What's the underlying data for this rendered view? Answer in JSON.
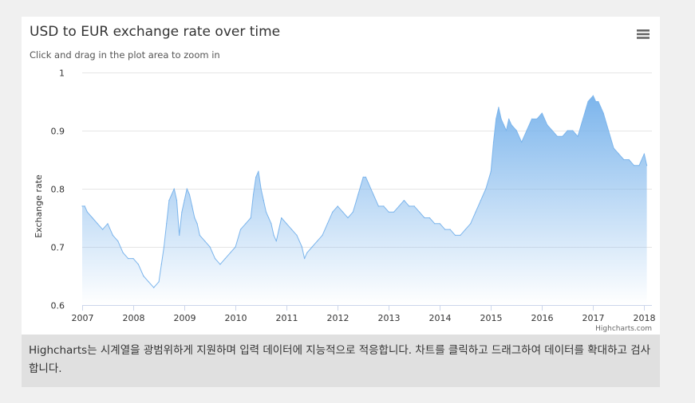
{
  "chart_data": {
    "type": "area",
    "title": "USD to EUR exchange rate over time",
    "subtitle": "Click and drag in the plot area to zoom in",
    "xlabel": "",
    "ylabel": "Exchange rate",
    "xlim": [
      2007.0,
      2018.15
    ],
    "ylim": [
      0.6,
      1.0
    ],
    "x_ticks": [
      "2007",
      "2008",
      "2009",
      "2010",
      "2011",
      "2012",
      "2013",
      "2014",
      "2015",
      "2016",
      "2017",
      "2018"
    ],
    "y_ticks": [
      "0.6",
      "0.7",
      "0.8",
      "0.9",
      "1"
    ],
    "grid": true,
    "legend": "none",
    "credits": "Highcharts.com",
    "series": [
      {
        "color": "#7cb5ec",
        "x": [
          2007.0,
          2007.05,
          2007.1,
          2007.2,
          2007.3,
          2007.4,
          2007.5,
          2007.6,
          2007.7,
          2007.8,
          2007.9,
          2008.0,
          2008.1,
          2008.2,
          2008.3,
          2008.4,
          2008.5,
          2008.55,
          2008.6,
          2008.65,
          2008.7,
          2008.75,
          2008.8,
          2008.85,
          2008.9,
          2008.95,
          2009.0,
          2009.05,
          2009.1,
          2009.15,
          2009.2,
          2009.25,
          2009.3,
          2009.4,
          2009.5,
          2009.6,
          2009.7,
          2009.8,
          2009.9,
          2010.0,
          2010.1,
          2010.2,
          2010.3,
          2010.35,
          2010.4,
          2010.45,
          2010.5,
          2010.55,
          2010.6,
          2010.65,
          2010.7,
          2010.75,
          2010.8,
          2010.85,
          2010.9,
          2011.0,
          2011.1,
          2011.2,
          2011.3,
          2011.35,
          2011.4,
          2011.5,
          2011.6,
          2011.7,
          2011.8,
          2011.9,
          2012.0,
          2012.1,
          2012.2,
          2012.3,
          2012.4,
          2012.5,
          2012.55,
          2012.6,
          2012.7,
          2012.8,
          2012.9,
          2013.0,
          2013.1,
          2013.2,
          2013.3,
          2013.4,
          2013.5,
          2013.6,
          2013.7,
          2013.8,
          2013.9,
          2014.0,
          2014.1,
          2014.2,
          2014.3,
          2014.4,
          2014.5,
          2014.6,
          2014.7,
          2014.8,
          2014.9,
          2015.0,
          2015.05,
          2015.1,
          2015.15,
          2015.2,
          2015.25,
          2015.3,
          2015.35,
          2015.4,
          2015.5,
          2015.6,
          2015.7,
          2015.8,
          2015.9,
          2016.0,
          2016.1,
          2016.2,
          2016.3,
          2016.4,
          2016.5,
          2016.6,
          2016.7,
          2016.8,
          2016.9,
          2017.0,
          2017.05,
          2017.1,
          2017.15,
          2017.2,
          2017.3,
          2017.4,
          2017.5,
          2017.6,
          2017.7,
          2017.8,
          2017.9,
          2018.0,
          2018.05
        ],
        "values": [
          0.77,
          0.77,
          0.76,
          0.75,
          0.74,
          0.73,
          0.74,
          0.72,
          0.71,
          0.69,
          0.68,
          0.68,
          0.67,
          0.65,
          0.64,
          0.63,
          0.64,
          0.67,
          0.7,
          0.74,
          0.78,
          0.79,
          0.8,
          0.78,
          0.72,
          0.76,
          0.78,
          0.8,
          0.79,
          0.77,
          0.75,
          0.74,
          0.72,
          0.71,
          0.7,
          0.68,
          0.67,
          0.68,
          0.69,
          0.7,
          0.73,
          0.74,
          0.75,
          0.79,
          0.82,
          0.83,
          0.8,
          0.78,
          0.76,
          0.75,
          0.74,
          0.72,
          0.71,
          0.73,
          0.75,
          0.74,
          0.73,
          0.72,
          0.7,
          0.68,
          0.69,
          0.7,
          0.71,
          0.72,
          0.74,
          0.76,
          0.77,
          0.76,
          0.75,
          0.76,
          0.79,
          0.82,
          0.82,
          0.81,
          0.79,
          0.77,
          0.77,
          0.76,
          0.76,
          0.77,
          0.78,
          0.77,
          0.77,
          0.76,
          0.75,
          0.75,
          0.74,
          0.74,
          0.73,
          0.73,
          0.72,
          0.72,
          0.73,
          0.74,
          0.76,
          0.78,
          0.8,
          0.83,
          0.88,
          0.92,
          0.94,
          0.92,
          0.91,
          0.9,
          0.92,
          0.91,
          0.9,
          0.88,
          0.9,
          0.92,
          0.92,
          0.93,
          0.91,
          0.9,
          0.89,
          0.89,
          0.9,
          0.9,
          0.89,
          0.92,
          0.95,
          0.96,
          0.95,
          0.95,
          0.94,
          0.93,
          0.9,
          0.87,
          0.86,
          0.85,
          0.85,
          0.84,
          0.84,
          0.86,
          0.84
        ]
      }
    ]
  },
  "ui": {
    "menu_icon": "hamburger-menu-icon",
    "caption": "Highcharts는 시계열을 광범위하게 지원하며 입력 데이터에 지능적으로 적응합니다. 차트를 클릭하고 드래그하여 데이터를 확대하고 검사합니다."
  }
}
